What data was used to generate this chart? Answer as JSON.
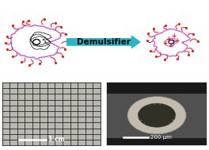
{
  "fig_width": 2.64,
  "fig_height": 1.89,
  "dpi": 100,
  "bg_color": "#ffffff",
  "arrow_color": "#29b6c8",
  "arrow_text": "Demulsifier",
  "arrow_text_color": "#000000",
  "arrow_text_fontsize": 7.5,
  "scale_bar_1cm_text": "1 cm",
  "scale_bar_200um_text": "200 μm",
  "grid_color": "#222222",
  "grid_bg": "#c8c8c8",
  "sem_bg": "#888888"
}
